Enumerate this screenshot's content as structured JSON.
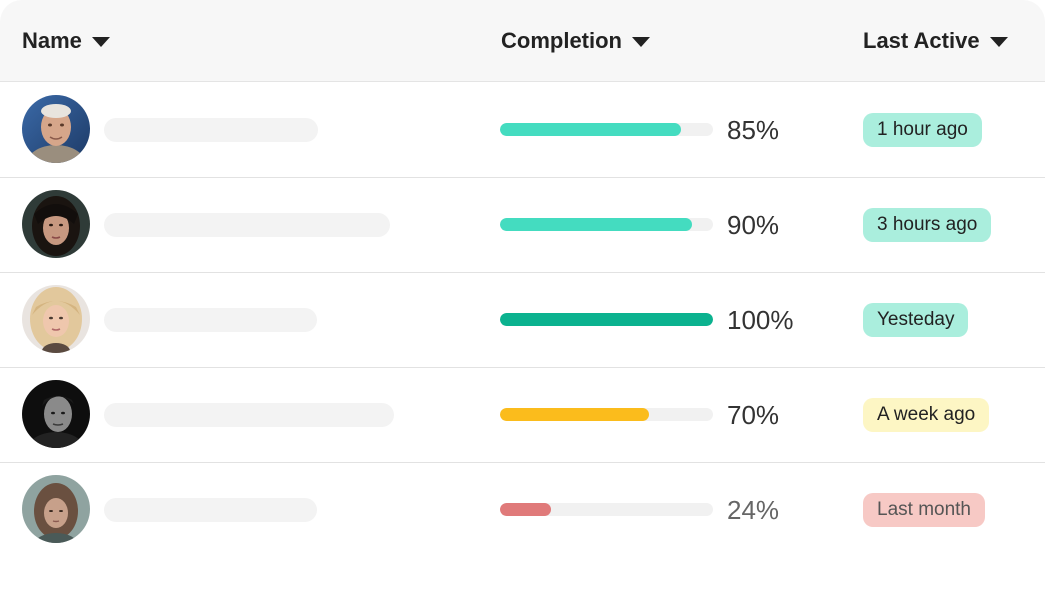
{
  "header": {
    "columns": [
      {
        "label": "Name",
        "icon": "caret-down-icon"
      },
      {
        "label": "Completion",
        "icon": "caret-down-icon"
      },
      {
        "label": "Last Active",
        "icon": "caret-down-icon"
      }
    ]
  },
  "rows": [
    {
      "completion": 0.85,
      "completion_label": "85%",
      "bar_color": "#44dcc0",
      "last_active": "1 hour ago",
      "badge_bg": "#aaeedd",
      "badge_color": "#222222",
      "pct_color": "#333333"
    },
    {
      "completion": 0.9,
      "completion_label": "90%",
      "bar_color": "#44dcc0",
      "last_active": "3 hours ago",
      "badge_bg": "#aaeedd",
      "badge_color": "#222222",
      "pct_color": "#333333"
    },
    {
      "completion": 1.0,
      "completion_label": "100%",
      "bar_color": "#0bb28f",
      "last_active": "Yesteday",
      "badge_bg": "#aaeedd",
      "badge_color": "#222222",
      "pct_color": "#333333"
    },
    {
      "completion": 0.7,
      "completion_label": "70%",
      "bar_color": "#fbbc1c",
      "last_active": "A week ago",
      "badge_bg": "#fdf6c4",
      "badge_color": "#222222",
      "pct_color": "#333333"
    },
    {
      "completion": 0.24,
      "completion_label": "24%",
      "bar_color": "#e07a7a",
      "last_active": "Last month",
      "badge_bg": "#f7c9c5",
      "badge_color": "#555555",
      "pct_color": "#666666"
    }
  ]
}
